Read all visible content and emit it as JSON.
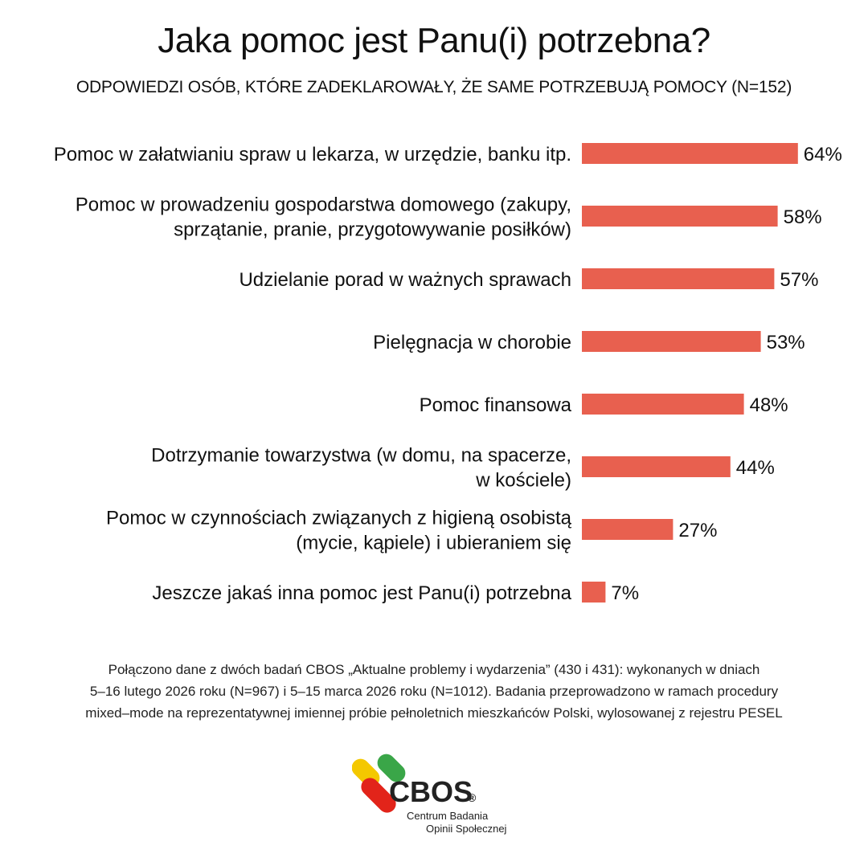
{
  "title": "Jaka pomoc jest Panu(i) potrzebna?",
  "subtitle": "ODPOWIEDZI OSÓB, KTÓRE ZADEKLAROWAŁY, ŻE SAME POTRZEBUJĄ POMOCY (N=152)",
  "chart_data": {
    "type": "bar",
    "orientation": "horizontal",
    "bar_color": "#e8604f",
    "categories": [
      [
        "Pomoc w załatwianiu spraw u lekarza, w urzędzie, banku itp."
      ],
      [
        "Pomoc w prowadzeniu gospodarstwa domowego (zakupy,",
        "sprzątanie, pranie, przygotowywanie posiłków)"
      ],
      [
        "Udzielanie porad w ważnych sprawach"
      ],
      [
        "Pielęgnacja w chorobie"
      ],
      [
        "Pomoc finansowa"
      ],
      [
        "Dotrzymanie towarzystwa (w domu, na spacerze,",
        "w kościele)"
      ],
      [
        "Pomoc w czynnościach związanych z higieną osobistą",
        "(mycie, kąpiele) i ubieraniem się"
      ],
      [
        "Jeszcze jakaś inna pomoc jest Panu(i) potrzebna"
      ]
    ],
    "values": [
      64,
      58,
      57,
      53,
      48,
      44,
      27,
      7
    ],
    "value_labels": [
      "64%",
      "58%",
      "57%",
      "53%",
      "48%",
      "44%",
      "27%",
      "7%"
    ],
    "xlim": [
      0,
      100
    ],
    "grid": false,
    "legend": "none"
  },
  "note": [
    "Połączono dane z dwóch badań CBOS „Aktualne problemy i wydarzenia” (430 i 431): wykonanych w dniach",
    "5–16 lutego 2026 roku (N=967) i 5–15 marca 2026 roku (N=1012). Badania przeprowadzono w ramach procedury",
    "mixed–mode na reprezentatywnej imiennej próbie pełnoletnich mieszkańców Polski, wylosowanej z rejestru PESEL"
  ],
  "logo": {
    "name": "CBOS",
    "mark": "®",
    "line1": "Centrum Badania",
    "line2": "Opinii Społecznej",
    "colors": {
      "yellow": "#f4c800",
      "green": "#3aa648",
      "red": "#e2241a",
      "text": "#222222"
    }
  }
}
